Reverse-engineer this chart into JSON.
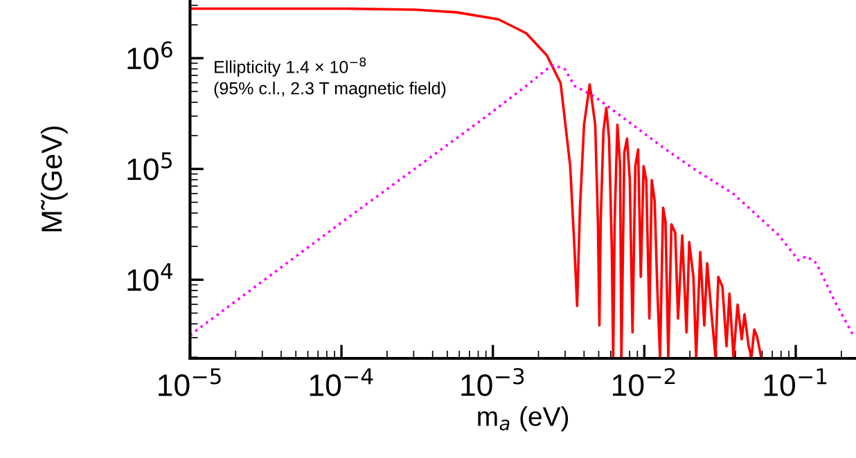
{
  "chart_data": {
    "type": "line",
    "xlabel": "m$_{a}$ (eV)",
    "ylabel": "M̃ (GeV)",
    "log": "xy",
    "grid": false,
    "legend": false,
    "xlim": [
      1e-05,
      0.25
    ],
    "ylim": [
      1950,
      3350000
    ],
    "xticks": [
      {
        "value": 1e-05,
        "label": "10$^{−5}$"
      },
      {
        "value": 0.0001,
        "label": "10$^{−4}$"
      },
      {
        "value": 0.001,
        "label": "10$^{−3}$"
      },
      {
        "value": 0.01,
        "label": "10$^{−2}$"
      },
      {
        "value": 0.1,
        "label": "10$^{−1}$"
      }
    ],
    "yticks": [
      {
        "value": 10000,
        "label": "10$^{4}$"
      },
      {
        "value": 100000,
        "label": "10$^{5}$"
      },
      {
        "value": 1000000,
        "label": "10$^{6}$"
      }
    ],
    "annotations": [
      "Ellipticity 1.4 × 10$^{−8}$\n(95% c.l., 2.3 T magnetic field)"
    ],
    "series": [
      {
        "color": "#ff0000",
        "line_style": "solid",
        "x": [
          1e-05,
          0.000108,
          0.000308,
          0.00058,
          0.00109,
          0.00166,
          0.00227,
          0.0028,
          0.00324,
          0.00346,
          0.0036,
          0.00376,
          0.004,
          0.00436,
          0.00474,
          0.00494,
          0.00505,
          0.00515,
          0.00537,
          0.00561,
          0.00585,
          0.0061,
          0.00623,
          0.00637,
          0.00664,
          0.00692,
          0.00706,
          0.00738,
          0.00769,
          0.00802,
          0.00836,
          0.00872,
          0.0091,
          0.00948,
          0.00989,
          0.0103,
          0.0108,
          0.0112,
          0.0117,
          0.0122,
          0.0127,
          0.0133,
          0.0138,
          0.0144,
          0.0151,
          0.016,
          0.0167,
          0.0178,
          0.019,
          0.0198,
          0.0211,
          0.022,
          0.0234,
          0.0249,
          0.026,
          0.0277,
          0.0295,
          0.0308,
          0.0328,
          0.0349,
          0.0365,
          0.0388,
          0.0413,
          0.044,
          0.0459,
          0.0489,
          0.051,
          0.0532,
          0.0555,
          0.0591
        ],
        "values": [
          2800000,
          2800000,
          2740000,
          2590000,
          2240000,
          1680000,
          1060000,
          596000,
          106000,
          18800,
          5800,
          44700,
          251000,
          579000,
          251000,
          33500,
          3870,
          33500,
          218000,
          355000,
          188000,
          18800,
          2000,
          33500,
          251000,
          106000,
          2000,
          141000,
          188000,
          79400,
          3350,
          106000,
          150000,
          10600,
          106000,
          79400,
          4470,
          79400,
          51600,
          7940,
          2000,
          44700,
          33500,
          2000,
          31600,
          26600,
          4470,
          25100,
          3350,
          21800,
          10600,
          2000,
          17800,
          3870,
          14100,
          5160,
          2000,
          10600,
          8660,
          2510,
          7500,
          2000,
          5960,
          2900,
          4870,
          2510,
          2000,
          3550,
          3070,
          2000
        ]
      },
      {
        "color": "#ff00ff",
        "line_style": "dotted",
        "x": [
          1e-05,
          0.000108,
          0.000881,
          0.00166,
          0.00227,
          0.00252,
          0.00299,
          0.00346,
          0.00474,
          0.00836,
          0.0135,
          0.022,
          0.0388,
          0.0776,
          0.1042,
          0.118,
          0.137,
          0.18,
          0.242
        ],
        "values": [
          3160,
          35500,
          290000,
          562000,
          794000,
          866000,
          794000,
          562000,
          447000,
          251000,
          154000,
          97100,
          59600,
          25100,
          15000,
          16300,
          14100,
          6500,
          3070
        ]
      }
    ]
  }
}
